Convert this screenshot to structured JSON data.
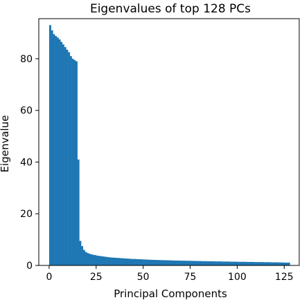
{
  "chart_data": {
    "type": "bar",
    "title": "Eigenvalues of top 128 PCs",
    "xlabel": "Principal Components",
    "ylabel": "Eigenvalue",
    "xlim": [
      -5.5,
      133
    ],
    "ylim": [
      0,
      95.5
    ],
    "xticks": [
      0,
      25,
      50,
      75,
      100,
      125
    ],
    "yticks": [
      0,
      20,
      40,
      60,
      80
    ],
    "grid": false,
    "color": "#1f77b4",
    "x": [
      0,
      1,
      2,
      3,
      4,
      5,
      6,
      7,
      8,
      9,
      10,
      11,
      12,
      13,
      14,
      15,
      16,
      17,
      18,
      19,
      20,
      21,
      22,
      23,
      24,
      25,
      26,
      27,
      28,
      29,
      30,
      31,
      32,
      33,
      34,
      35,
      36,
      37,
      38,
      39,
      40,
      41,
      42,
      43,
      44,
      45,
      46,
      47,
      48,
      49,
      50,
      51,
      52,
      53,
      54,
      55,
      56,
      57,
      58,
      59,
      60,
      61,
      62,
      63,
      64,
      65,
      66,
      67,
      68,
      69,
      70,
      71,
      72,
      73,
      74,
      75,
      76,
      77,
      78,
      79,
      80,
      81,
      82,
      83,
      84,
      85,
      86,
      87,
      88,
      89,
      90,
      91,
      92,
      93,
      94,
      95,
      96,
      97,
      98,
      99,
      100,
      101,
      102,
      103,
      104,
      105,
      106,
      107,
      108,
      109,
      110,
      111,
      112,
      113,
      114,
      115,
      116,
      117,
      118,
      119,
      120,
      121,
      122,
      123,
      124,
      125,
      126,
      127
    ],
    "values": [
      93.0,
      91.0,
      89.5,
      88.8,
      88.2,
      87.5,
      86.5,
      85.5,
      84.5,
      83.5,
      82.5,
      81.0,
      80.0,
      79.5,
      79.0,
      41.0,
      9.5,
      7.5,
      6.0,
      5.2,
      4.8,
      4.5,
      4.3,
      4.1,
      4.0,
      3.8,
      3.7,
      3.6,
      3.5,
      3.4,
      3.3,
      3.2,
      3.1,
      3.05,
      3.0,
      2.95,
      2.9,
      2.85,
      2.8,
      2.75,
      2.7,
      2.65,
      2.6,
      2.55,
      2.5,
      2.5,
      2.45,
      2.4,
      2.4,
      2.35,
      2.3,
      2.3,
      2.25,
      2.2,
      2.2,
      2.15,
      2.15,
      2.1,
      2.1,
      2.05,
      2.05,
      2.0,
      2.0,
      2.0,
      1.95,
      1.95,
      1.9,
      1.9,
      1.9,
      1.85,
      1.85,
      1.85,
      1.8,
      1.8,
      1.8,
      1.75,
      1.75,
      1.75,
      1.7,
      1.7,
      1.7,
      1.65,
      1.65,
      1.65,
      1.6,
      1.6,
      1.6,
      1.6,
      1.55,
      1.55,
      1.55,
      1.55,
      1.5,
      1.5,
      1.5,
      1.5,
      1.45,
      1.45,
      1.45,
      1.45,
      1.4,
      1.4,
      1.4,
      1.4,
      1.4,
      1.35,
      1.35,
      1.35,
      1.35,
      1.3,
      1.3,
      1.3,
      1.3,
      1.3,
      1.25,
      1.25,
      1.25,
      1.25,
      1.2,
      1.2,
      1.2,
      1.2,
      1.15,
      1.15,
      1.15,
      1.1,
      1.1,
      1.1
    ]
  }
}
